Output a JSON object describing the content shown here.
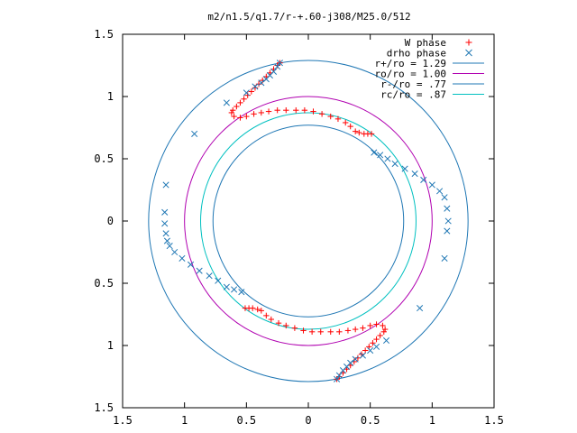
{
  "chart_data": {
    "type": "scatter",
    "title": "m2/n1.5/q1.7/r-+.60-j308/M25.0/512",
    "xlabel": "",
    "ylabel": "",
    "xlim": [
      -1.5,
      1.5
    ],
    "ylim": [
      -1.5,
      1.5
    ],
    "x_ticks": [
      {
        "value": -1.5,
        "label": "1.5"
      },
      {
        "value": -1.0,
        "label": "1"
      },
      {
        "value": -0.5,
        "label": "0.5"
      },
      {
        "value": 0.0,
        "label": "0"
      },
      {
        "value": 0.5,
        "label": "0.5"
      },
      {
        "value": 1.0,
        "label": "1"
      },
      {
        "value": 1.5,
        "label": "1.5"
      }
    ],
    "y_ticks": [
      {
        "value": 1.5,
        "label": "1.5"
      },
      {
        "value": 1.0,
        "label": "1"
      },
      {
        "value": 0.5,
        "label": "0.5"
      },
      {
        "value": 0.0,
        "label": "0"
      },
      {
        "value": -0.5,
        "label": "0.5"
      },
      {
        "value": -1.0,
        "label": "1"
      },
      {
        "value": -1.5,
        "label": "1.5"
      }
    ],
    "grid": false,
    "legend_position": "top-right",
    "circles": [
      {
        "name": "r+/ro = 1.29",
        "radius": 1.29,
        "color": "#1f77b4"
      },
      {
        "name": "ro/ro = 1.00",
        "radius": 1.0,
        "color": "#b000b0"
      },
      {
        "name": "r-/ro = .77",
        "radius": 0.77,
        "color": "#1f77b4"
      },
      {
        "name": "rc/ro = .87",
        "radius": 0.87,
        "color": "#00c0c0"
      }
    ],
    "series": [
      {
        "name": "W phase",
        "marker": "+",
        "color": "#ff0000",
        "points": [
          [
            -0.23,
            1.27
          ],
          [
            -0.25,
            1.25
          ],
          [
            -0.28,
            1.22
          ],
          [
            -0.31,
            1.19
          ],
          [
            -0.34,
            1.16
          ],
          [
            -0.37,
            1.13
          ],
          [
            -0.4,
            1.1
          ],
          [
            -0.43,
            1.07
          ],
          [
            -0.46,
            1.04
          ],
          [
            -0.49,
            1.01
          ],
          [
            -0.52,
            0.98
          ],
          [
            -0.55,
            0.95
          ],
          [
            -0.58,
            0.92
          ],
          [
            -0.61,
            0.89
          ],
          [
            -0.62,
            0.87
          ],
          [
            -0.6,
            0.84
          ],
          [
            -0.55,
            0.83
          ],
          [
            -0.5,
            0.84
          ],
          [
            -0.44,
            0.86
          ],
          [
            -0.38,
            0.87
          ],
          [
            -0.32,
            0.88
          ],
          [
            -0.25,
            0.89
          ],
          [
            -0.18,
            0.89
          ],
          [
            -0.1,
            0.89
          ],
          [
            -0.03,
            0.89
          ],
          [
            0.04,
            0.88
          ],
          [
            0.11,
            0.86
          ],
          [
            0.18,
            0.84
          ],
          [
            0.24,
            0.82
          ],
          [
            0.3,
            0.79
          ],
          [
            0.34,
            0.76
          ],
          [
            0.38,
            0.72
          ],
          [
            0.41,
            0.71
          ],
          [
            0.45,
            0.7
          ],
          [
            0.48,
            0.7
          ],
          [
            0.51,
            0.7
          ],
          [
            0.23,
            -1.27
          ],
          [
            0.25,
            -1.25
          ],
          [
            0.28,
            -1.22
          ],
          [
            0.31,
            -1.19
          ],
          [
            0.34,
            -1.16
          ],
          [
            0.37,
            -1.13
          ],
          [
            0.4,
            -1.1
          ],
          [
            0.43,
            -1.07
          ],
          [
            0.46,
            -1.04
          ],
          [
            0.49,
            -1.01
          ],
          [
            0.52,
            -0.98
          ],
          [
            0.55,
            -0.95
          ],
          [
            0.58,
            -0.92
          ],
          [
            0.61,
            -0.89
          ],
          [
            0.62,
            -0.87
          ],
          [
            0.6,
            -0.84
          ],
          [
            0.55,
            -0.83
          ],
          [
            0.5,
            -0.84
          ],
          [
            0.44,
            -0.86
          ],
          [
            0.38,
            -0.87
          ],
          [
            0.32,
            -0.88
          ],
          [
            0.25,
            -0.89
          ],
          [
            0.18,
            -0.89
          ],
          [
            0.1,
            -0.89
          ],
          [
            0.03,
            -0.89
          ],
          [
            -0.04,
            -0.88
          ],
          [
            -0.11,
            -0.86
          ],
          [
            -0.18,
            -0.84
          ],
          [
            -0.24,
            -0.82
          ],
          [
            -0.3,
            -0.79
          ],
          [
            -0.34,
            -0.76
          ],
          [
            -0.38,
            -0.72
          ],
          [
            -0.41,
            -0.71
          ],
          [
            -0.45,
            -0.7
          ],
          [
            -0.48,
            -0.7
          ],
          [
            -0.51,
            -0.7
          ]
        ]
      },
      {
        "name": "drho phase",
        "marker": "x",
        "color": "#1f77b4",
        "points": [
          [
            -0.23,
            1.27
          ],
          [
            -0.25,
            1.24
          ],
          [
            -0.28,
            1.2
          ],
          [
            -0.31,
            1.17
          ],
          [
            -0.34,
            1.14
          ],
          [
            -0.38,
            1.11
          ],
          [
            -0.43,
            1.08
          ],
          [
            -0.5,
            1.03
          ],
          [
            -0.66,
            0.95
          ],
          [
            -0.92,
            0.7
          ],
          [
            -1.15,
            0.29
          ],
          [
            -1.16,
            0.07
          ],
          [
            -1.16,
            -0.02
          ],
          [
            -1.15,
            -0.1
          ],
          [
            -1.14,
            -0.16
          ],
          [
            -1.12,
            -0.2
          ],
          [
            -1.08,
            -0.25
          ],
          [
            -1.02,
            -0.3
          ],
          [
            -0.95,
            -0.35
          ],
          [
            -0.88,
            -0.4
          ],
          [
            -0.8,
            -0.44
          ],
          [
            -0.73,
            -0.48
          ],
          [
            -0.66,
            -0.53
          ],
          [
            -0.6,
            -0.55
          ],
          [
            -0.54,
            -0.57
          ],
          [
            0.53,
            0.55
          ],
          [
            0.58,
            0.53
          ],
          [
            0.64,
            0.5
          ],
          [
            0.7,
            0.46
          ],
          [
            0.78,
            0.42
          ],
          [
            0.86,
            0.38
          ],
          [
            0.93,
            0.33
          ],
          [
            1.0,
            0.29
          ],
          [
            1.06,
            0.24
          ],
          [
            1.1,
            0.19
          ],
          [
            1.12,
            0.1
          ],
          [
            1.13,
            0.0
          ],
          [
            1.12,
            -0.08
          ],
          [
            1.1,
            -0.3
          ],
          [
            0.9,
            -0.7
          ],
          [
            0.63,
            -0.96
          ],
          [
            0.55,
            -1.01
          ],
          [
            0.5,
            -1.04
          ],
          [
            0.44,
            -1.08
          ],
          [
            0.38,
            -1.11
          ],
          [
            0.34,
            -1.14
          ],
          [
            0.31,
            -1.17
          ],
          [
            0.28,
            -1.2
          ],
          [
            0.25,
            -1.24
          ],
          [
            0.23,
            -1.27
          ]
        ]
      }
    ]
  }
}
